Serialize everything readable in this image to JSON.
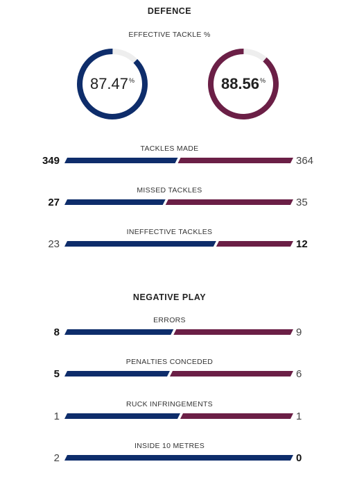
{
  "defence": {
    "title": "DEFENCE",
    "effective_tackle": {
      "label": "EFFECTIVE TACKLE %",
      "home": {
        "value": "87.47",
        "unit": "%",
        "fraction": 0.8747
      },
      "away": {
        "value": "88.56",
        "unit": "%",
        "fraction": 0.8856
      }
    },
    "stats": [
      {
        "label": "TACKLES MADE",
        "home": "349",
        "away": "364",
        "home_value": 349,
        "away_value": 364,
        "leader": "home"
      },
      {
        "label": "MISSED TACKLES",
        "home": "27",
        "away": "35",
        "home_value": 27,
        "away_value": 35,
        "leader": "home"
      },
      {
        "label": "INEFFECTIVE TACKLES",
        "home": "23",
        "away": "12",
        "home_value": 23,
        "away_value": 12,
        "leader": "away"
      }
    ]
  },
  "negative_play": {
    "title": "NEGATIVE PLAY",
    "stats": [
      {
        "label": "ERRORS",
        "home": "8",
        "away": "9",
        "home_value": 8,
        "away_value": 9,
        "leader": "home"
      },
      {
        "label": "PENALTIES CONCEDED",
        "home": "5",
        "away": "6",
        "home_value": 5,
        "away_value": 6,
        "leader": "home"
      },
      {
        "label": "RUCK INFRINGEMENTS",
        "home": "1",
        "away": "1",
        "home_value": 1,
        "away_value": 1,
        "leader": "none"
      },
      {
        "label": "INSIDE 10 METRES",
        "home": "2",
        "away": "0",
        "home_value": 2,
        "away_value": 0,
        "leader": "away"
      }
    ]
  },
  "colors": {
    "home": "#0e2d6b",
    "away": "#6b1f46",
    "track": "#eeeeee"
  }
}
